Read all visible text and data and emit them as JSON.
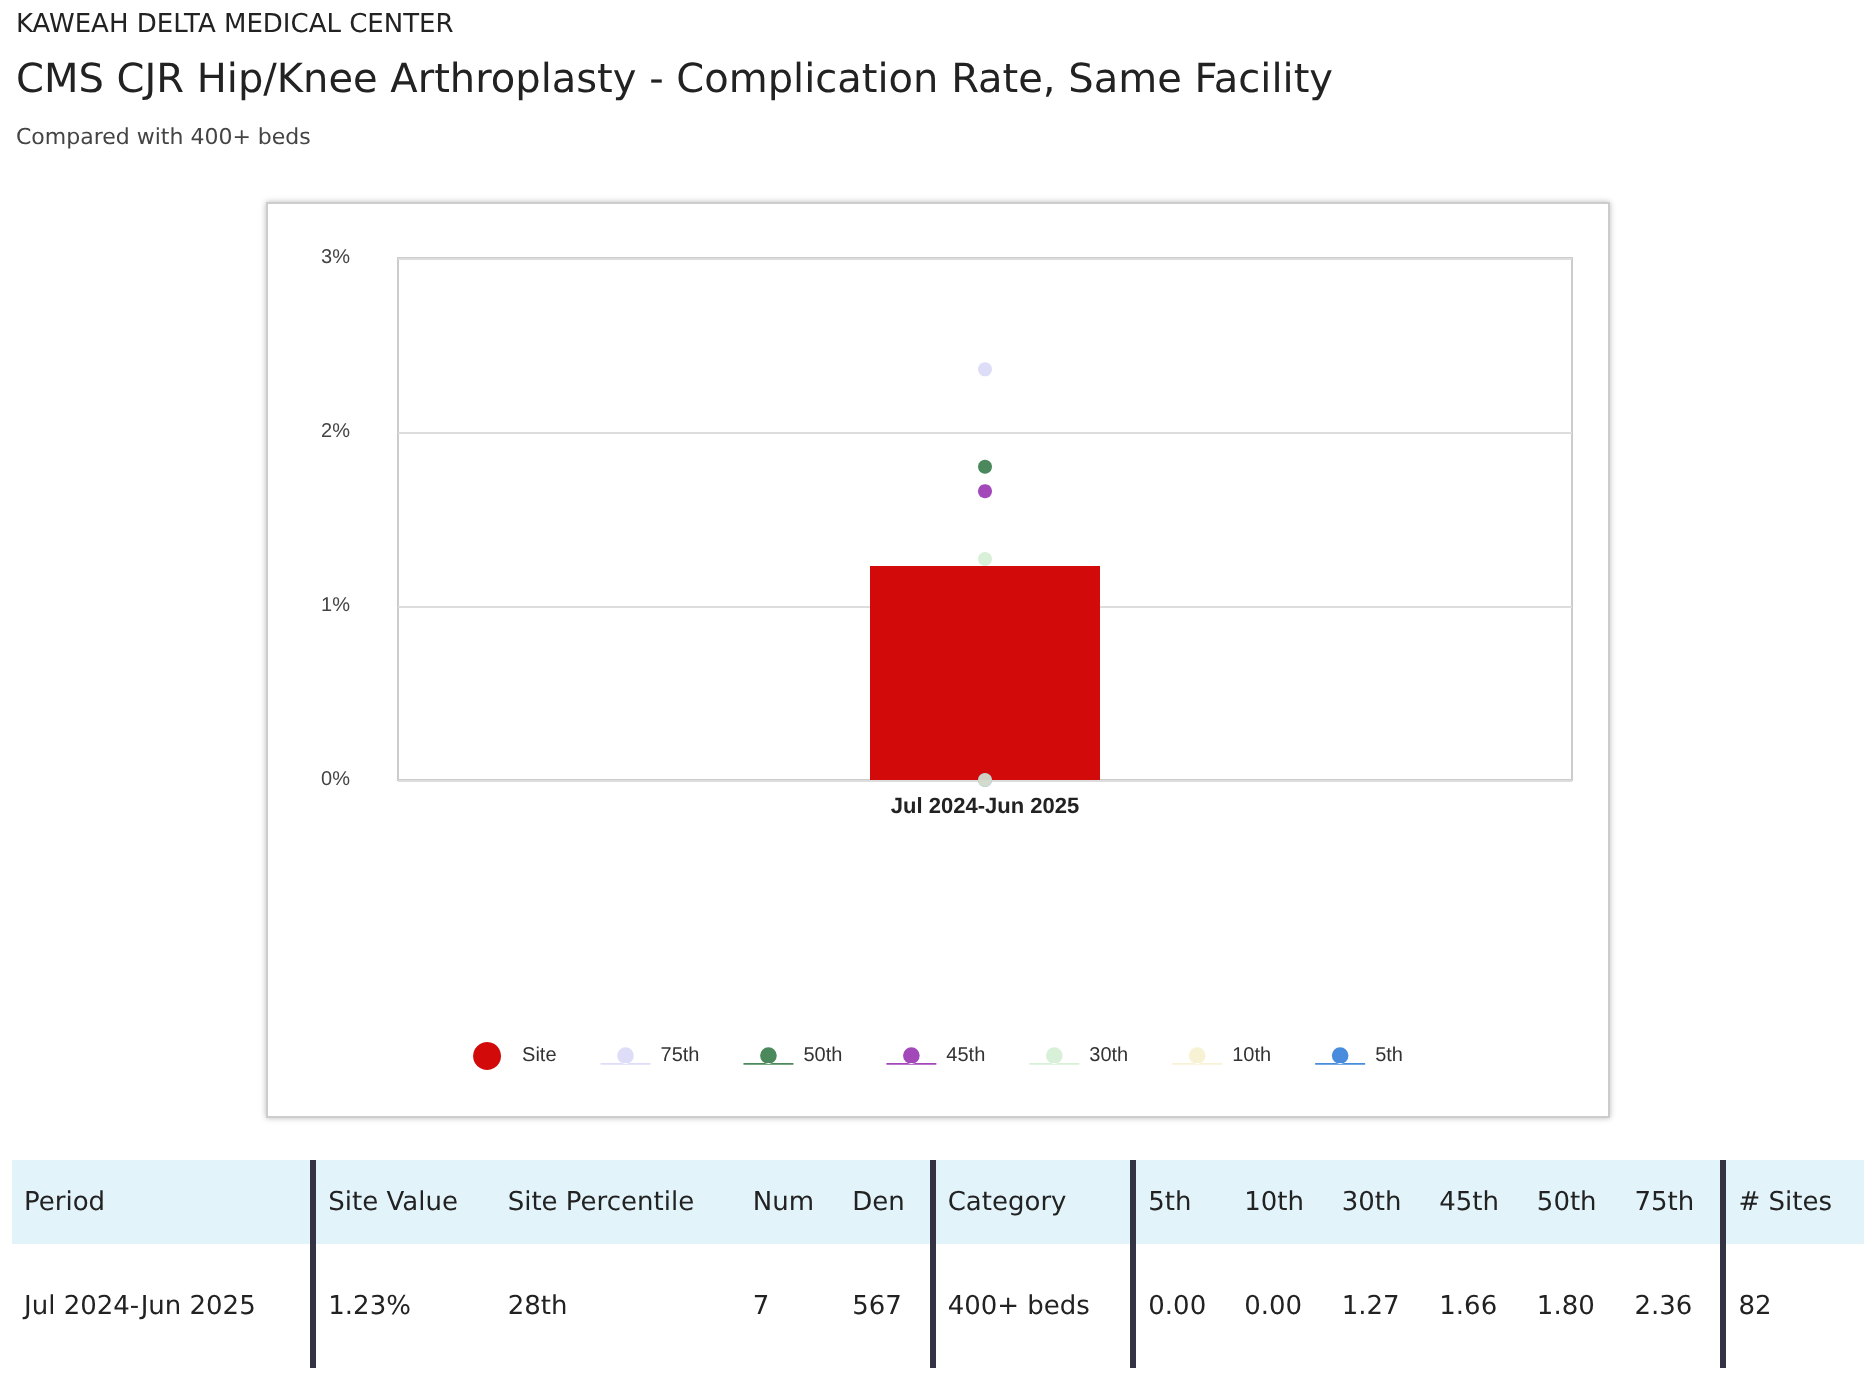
{
  "chart_data": {
    "type": "scatter",
    "title": "CMS CJR Hip/Knee Arthroplasty - Complication Rate, Same Facility",
    "subtitle": "Compared with 400+ beds",
    "categories": [
      "Jul 2024-Jun 2025"
    ],
    "series": [
      {
        "name": "Site",
        "type": "bar",
        "color": "#d20a0a",
        "values": [
          1.23
        ]
      },
      {
        "name": "75th",
        "color": "#d4d4f6",
        "values": [
          2.36
        ]
      },
      {
        "name": "50th",
        "color": "#1e6b34",
        "values": [
          1.8
        ]
      },
      {
        "name": "45th",
        "color": "#8b1aa8",
        "values": [
          1.66
        ]
      },
      {
        "name": "30th",
        "color": "#cdeccd",
        "values": [
          1.27
        ]
      },
      {
        "name": "10th",
        "color": "#f5efc8",
        "values": [
          0.0
        ]
      },
      {
        "name": "5th",
        "color": "#1a6fd6",
        "values": [
          0.0
        ]
      }
    ],
    "ylim": [
      0,
      3
    ],
    "yticks": [
      {
        "value": 0,
        "label": "0%"
      },
      {
        "value": 1,
        "label": "1%"
      },
      {
        "value": 2,
        "label": "2%"
      },
      {
        "value": 3,
        "label": "3%"
      }
    ],
    "grid": "y",
    "legend": "bottom",
    "marker": "circle",
    "annotations": [
      "KAWEAH DELTA MEDICAL CENTER",
      "Period",
      "Site Value",
      "Site Percentile",
      "Num",
      "Den",
      "Category",
      "# Sites",
      "28th",
      "7",
      "567",
      "400+ beds",
      "82",
      "1.23%",
      "2.36",
      "1.80",
      "1.66",
      "1.27",
      "0.00",
      "0.00"
    ]
  }
}
